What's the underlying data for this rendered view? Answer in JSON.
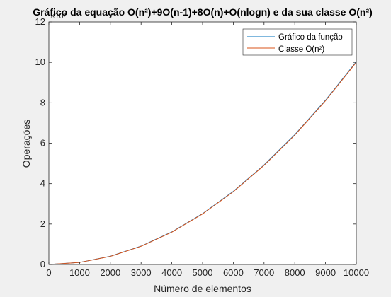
{
  "chart_data": {
    "type": "line",
    "title": "Gráfico da equação O(n²)+9O(n-1)+8O(n)+O(nlogn) e da sua classe O(n²)",
    "xlabel": "Número de elementos",
    "ylabel": "Operações",
    "xlim": [
      0,
      10000
    ],
    "ylim": [
      0,
      120000000
    ],
    "y_exponent_label": "×10⁷",
    "x_ticks": [
      0,
      1000,
      2000,
      3000,
      4000,
      5000,
      6000,
      7000,
      8000,
      9000,
      10000
    ],
    "x_tick_labels": [
      "0",
      "1000",
      "2000",
      "3000",
      "4000",
      "5000",
      "6000",
      "7000",
      "8000",
      "9000",
      "10000"
    ],
    "y_ticks": [
      0,
      20000000,
      40000000,
      60000000,
      80000000,
      100000000,
      120000000
    ],
    "y_tick_labels": [
      "0",
      "2",
      "4",
      "6",
      "8",
      "10",
      "12"
    ],
    "grid": false,
    "legend_position": "top-right",
    "series": [
      {
        "name": "Gráfico da função",
        "color": "#0072bd",
        "x": [
          0,
          1000,
          2000,
          3000,
          4000,
          5000,
          6000,
          7000,
          8000,
          9000,
          10000
        ],
        "y": [
          0,
          1028000,
          4056000,
          9084000,
          16112000,
          25140000,
          36168000,
          49196000,
          64224000,
          81252000,
          100280000
        ]
      },
      {
        "name": "Classe O(n²)",
        "color": "#d95319",
        "x": [
          0,
          1000,
          2000,
          3000,
          4000,
          5000,
          6000,
          7000,
          8000,
          9000,
          10000
        ],
        "y": [
          0,
          1000000,
          4000000,
          9000000,
          16000000,
          25000000,
          36000000,
          49000000,
          64000000,
          81000000,
          100000000
        ]
      }
    ]
  }
}
